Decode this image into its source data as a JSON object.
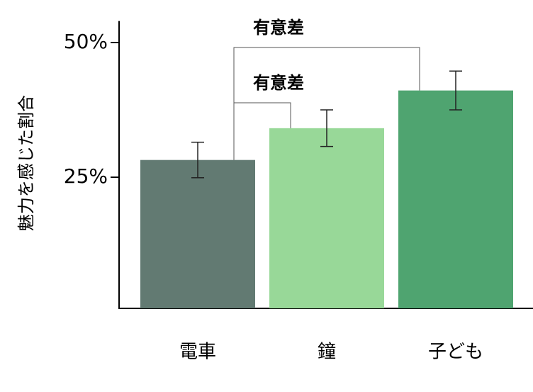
{
  "chart_data": {
    "type": "bar",
    "y_label": "魅力を感じた割合",
    "categories": [
      "電車",
      "鐘",
      "子ども"
    ],
    "values": [
      28.2,
      34.1,
      41.1
    ],
    "errors": [
      3.3,
      3.4,
      3.6
    ],
    "colors": [
      "#627a72",
      "#98d898",
      "#4fa470"
    ],
    "ylim": [
      0,
      54
    ],
    "yticks": [
      {
        "value": 25,
        "label": "25%"
      },
      {
        "value": 50,
        "label": "50%"
      }
    ],
    "significance": [
      {
        "from": 0,
        "to": 2,
        "label": "有意差"
      },
      {
        "from": 0,
        "to": 1,
        "label": "有意差"
      }
    ]
  }
}
